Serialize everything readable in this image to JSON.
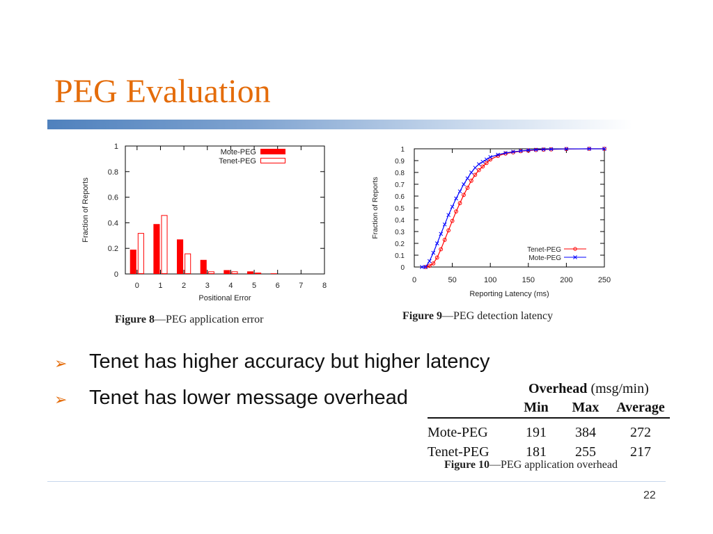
{
  "slide": {
    "title": "PEG Evaluation",
    "page_number": "22"
  },
  "figure8_caption": {
    "label": "Figure 8",
    "text": "—PEG application error"
  },
  "figure9_caption": {
    "label": "Figure 9",
    "text": "—PEG detection latency"
  },
  "figure10_caption": {
    "label": "Figure 10",
    "text": "—PEG application overhead"
  },
  "bullets": [
    {
      "marker": "➢",
      "text": "Tenet has higher accuracy but higher latency"
    },
    {
      "marker": "➢",
      "text": "Tenet has lower message overhead"
    }
  ],
  "overhead_table": {
    "header_bold": "Overhead",
    "header_unit": " (msg/min)",
    "columns": [
      "",
      "Min",
      "Max",
      "Average"
    ],
    "rows": [
      [
        "Mote-PEG",
        "191",
        "384",
        "272"
      ],
      [
        "Tenet-PEG",
        "181",
        "255",
        "217"
      ]
    ]
  },
  "colors": {
    "title": "#e46c0a",
    "mote": "#ff0000",
    "tenet_fig9": "#ff0000",
    "mote_fig9": "#0000ff"
  },
  "chart_data": [
    {
      "type": "bar",
      "xlabel": "Positional Error",
      "ylabel": "Fraction of Reports",
      "xlim": [
        -0.5,
        8
      ],
      "ylim": [
        0,
        1
      ],
      "xticks": [
        0,
        1,
        2,
        3,
        4,
        5,
        6,
        7,
        8
      ],
      "yticks": [
        0,
        0.2,
        0.4,
        0.6,
        0.8,
        1
      ],
      "ytick_labels": [
        "0",
        "0.2",
        "0.4",
        "0.6",
        "0.8",
        "1"
      ],
      "legend_position": "top-right",
      "categories": [
        0,
        1,
        2,
        3,
        4,
        5,
        6
      ],
      "series": [
        {
          "name": "Mote-PEG",
          "style": "filled",
          "values": [
            0.19,
            0.39,
            0.27,
            0.11,
            0.03,
            0.02,
            0.005
          ]
        },
        {
          "name": "Tenet-PEG",
          "style": "outline",
          "values": [
            0.32,
            0.46,
            0.16,
            0.02,
            0.02,
            0.01,
            0.0
          ]
        }
      ]
    },
    {
      "type": "line",
      "xlabel": "Reporting Latency (ms)",
      "ylabel": "Fraction of Reports",
      "xlim": [
        0,
        250
      ],
      "ylim": [
        0,
        1
      ],
      "xticks": [
        0,
        50,
        100,
        150,
        200,
        250
      ],
      "yticks": [
        0,
        0.1,
        0.2,
        0.3,
        0.4,
        0.5,
        0.6,
        0.7,
        0.8,
        0.9,
        1
      ],
      "ytick_labels": [
        "0",
        "0.1",
        "0.2",
        "0.3",
        "0.4",
        "0.5",
        "0.6",
        "0.7",
        "0.8",
        "0.9",
        "1"
      ],
      "legend_position": "bottom-right",
      "series": [
        {
          "name": "Tenet-PEG",
          "marker": "o",
          "x": [
            15,
            20,
            25,
            30,
            35,
            40,
            45,
            50,
            55,
            60,
            65,
            70,
            75,
            80,
            85,
            90,
            95,
            100,
            110,
            120,
            130,
            140,
            150,
            160,
            170,
            180,
            200,
            230,
            250
          ],
          "y": [
            0.0,
            0.01,
            0.03,
            0.08,
            0.15,
            0.23,
            0.31,
            0.39,
            0.47,
            0.54,
            0.61,
            0.67,
            0.73,
            0.78,
            0.82,
            0.85,
            0.88,
            0.91,
            0.94,
            0.96,
            0.97,
            0.98,
            0.985,
            0.99,
            0.993,
            0.995,
            0.998,
            1.0,
            1.0
          ]
        },
        {
          "name": "Mote-PEG",
          "marker": "x",
          "x": [
            10,
            15,
            20,
            25,
            30,
            35,
            40,
            45,
            50,
            55,
            60,
            65,
            70,
            75,
            80,
            85,
            90,
            95,
            100,
            110,
            120,
            130,
            140,
            150,
            160,
            170,
            180,
            200,
            230,
            250
          ],
          "y": [
            0.0,
            0.0,
            0.05,
            0.12,
            0.2,
            0.28,
            0.36,
            0.44,
            0.51,
            0.58,
            0.64,
            0.7,
            0.75,
            0.8,
            0.84,
            0.87,
            0.89,
            0.91,
            0.93,
            0.95,
            0.965,
            0.975,
            0.982,
            0.988,
            0.992,
            0.995,
            0.997,
            0.999,
            1.0,
            1.0
          ]
        }
      ]
    }
  ]
}
